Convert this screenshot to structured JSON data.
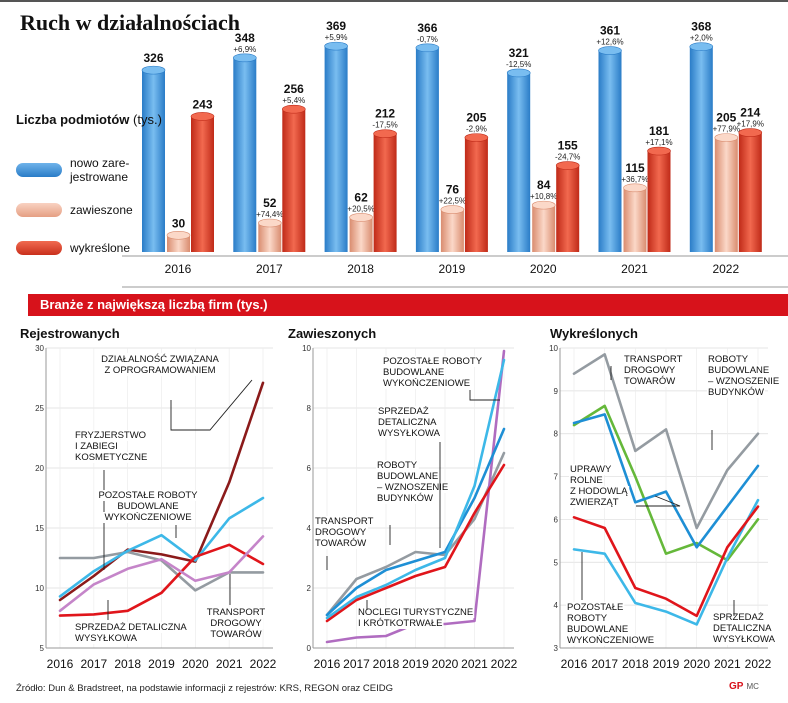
{
  "title": "Ruch w działalnościach",
  "legend": {
    "title_bold": "Liczba podmiotów",
    "title_unit": "(tys.)",
    "items": [
      {
        "label_line1": "nowo zare-",
        "label_line2": "jestrowane",
        "color": "#3a8fd6"
      },
      {
        "label_line1": "zawieszone",
        "label_line2": "",
        "color": "#f2b49c"
      },
      {
        "label_line1": "wykreślone",
        "label_line2": "",
        "color": "#e0402a"
      }
    ]
  },
  "chart_data": [
    {
      "type": "bar",
      "categories": [
        "2016",
        "2017",
        "2018",
        "2019",
        "2020",
        "2021",
        "2022"
      ],
      "ylim": [
        0,
        380
      ],
      "series": [
        {
          "name": "nowo zarejestrowane",
          "color": "#3a8fd6",
          "values": [
            326,
            348,
            369,
            366,
            321,
            361,
            368
          ],
          "changes": [
            "",
            "+6,9%",
            "+5,9%",
            "-0,7%",
            "-12,5%",
            "+12,6%",
            "+2,0%"
          ]
        },
        {
          "name": "zawieszone",
          "color": "#f2b49c",
          "values": [
            30,
            52,
            62,
            76,
            84,
            115,
            205
          ],
          "changes": [
            "",
            "+74,4%",
            "+20,5%",
            "+22,5%",
            "+10,8%",
            "+36,7%",
            "+77,9%"
          ]
        },
        {
          "name": "wykreślone",
          "color": "#e0402a",
          "values": [
            243,
            256,
            212,
            205,
            155,
            181,
            214
          ],
          "changes": [
            "",
            "+5,4%",
            "-17,5%",
            "-2,9%",
            "-24,7%",
            "+17,1%",
            "+17,9%"
          ]
        }
      ]
    },
    {
      "type": "line",
      "title": "Rejestrowanych",
      "x": [
        "2016",
        "2017",
        "2018",
        "2019",
        "2020",
        "2021",
        "2022"
      ],
      "ylim": [
        5,
        30
      ],
      "yticks": [
        5,
        10,
        15,
        20,
        25,
        30
      ],
      "series": [
        {
          "name": "DZIAŁALNOŚĆ ZWIĄZANA Z OPROGRAMOWANIEM",
          "color": "#8b1a1a",
          "values": [
            9.0,
            11.0,
            13.2,
            12.8,
            12.2,
            18.8,
            27.1
          ]
        },
        {
          "name": "FRYZJERSTWO I ZABIEGI KOSMETYCZNE",
          "color": "#949ba1",
          "values": [
            12.5,
            12.5,
            13.0,
            12.3,
            9.8,
            11.3,
            11.3
          ]
        },
        {
          "name": "POZOSTAŁE ROBOTY BUDOWLANE WYKOŃCZENIOWE",
          "color": "#3db8e8",
          "values": [
            9.3,
            11.4,
            13.1,
            14.4,
            12.3,
            15.8,
            17.5
          ]
        },
        {
          "name": "SPRZEDAŻ DETALICZNA WYSYŁKOWA",
          "color": "#e0151b",
          "values": [
            7.7,
            7.8,
            8.1,
            9.6,
            12.6,
            13.6,
            12.0
          ]
        },
        {
          "name": "TRANSPORT DROGOWY TOWARÓW",
          "color": "#c585c9",
          "values": [
            8.1,
            10.3,
            11.6,
            12.4,
            10.6,
            11.3,
            14.3
          ]
        }
      ],
      "labels": [
        {
          "line1": "DZIAŁALNOŚĆ ZWIĄZANA",
          "line2": "Z OPROGRAMOWANIEM",
          "line3": ""
        },
        {
          "line1": "FRYZJERSTWO",
          "line2": "I ZABIEGI",
          "line3": "KOSMETYCZNE"
        },
        {
          "line1": "POZOSTAŁE ROBOTY",
          "line2": "BUDOWLANE",
          "line3": "WYKOŃCZENIOWE"
        },
        {
          "line1": "SPRZEDAŻ DETALICZNA",
          "line2": "WYSYŁKOWA",
          "line3": ""
        },
        {
          "line1": "TRANSPORT",
          "line2": "DROGOWY",
          "line3": "TOWARÓW"
        }
      ]
    },
    {
      "type": "line",
      "title": "Zawieszonych",
      "x": [
        "2016",
        "2017",
        "2018",
        "2019",
        "2020",
        "2021",
        "2022"
      ],
      "ylim": [
        0,
        10
      ],
      "yticks": [
        0,
        2,
        4,
        6,
        8,
        10
      ],
      "series": [
        {
          "name": "TRANSPORT DROGOWY TOWARÓW",
          "color": "#949ba1",
          "values": [
            1.1,
            2.3,
            2.7,
            3.2,
            3.1,
            4.3,
            6.5
          ]
        },
        {
          "name": "NOCLEGI TURYSTYCZNE I KRÓTKOTRWAŁE",
          "color": "#b06cc0",
          "values": [
            0.2,
            0.35,
            0.4,
            0.8,
            0.8,
            0.9,
            9.9
          ]
        },
        {
          "name": "ROBOTY BUDOWLANE – WZNOSZENIE BUDYNKÓW",
          "color": "#1e8fd5",
          "values": [
            1.1,
            2.0,
            2.6,
            2.9,
            3.2,
            5.0,
            7.3
          ]
        },
        {
          "name": "SPRZEDAŻ DETALICZNA WYSYŁKOWA",
          "color": "#e0151b",
          "values": [
            0.9,
            1.6,
            2.0,
            2.4,
            2.7,
            4.5,
            6.1
          ]
        },
        {
          "name": "POZOSTAŁE ROBOTY BUDOWLANE WYKOŃCZENIOWE",
          "color": "#3db8e8",
          "values": [
            1.0,
            1.7,
            2.1,
            2.6,
            3.0,
            5.4,
            9.6
          ]
        }
      ],
      "labels": [
        {
          "line1": "TRANSPORT",
          "line2": "DROGOWY",
          "line3": "TOWARÓW"
        },
        {
          "line1": "NOCLEGI TURYSTYCZNE",
          "line2": "I KRÓTKOTRWAŁE",
          "line3": ""
        },
        {
          "line1": "ROBOTY",
          "line2": "BUDOWLANE",
          "line3": "– WZNOSZENIE",
          "line4": "BUDYNKÓW"
        },
        {
          "line1": "SPRZEDAŻ",
          "line2": "DETALICZNA",
          "line3": "WYSYŁKOWA"
        },
        {
          "line1": "POZOSTAŁE ROBOTY",
          "line2": "BUDOWLANE",
          "line3": "WYKOŃCZENIOWE"
        }
      ]
    },
    {
      "type": "line",
      "title": "Wykreślonych",
      "x": [
        "2016",
        "2017",
        "2018",
        "2019",
        "2020",
        "2021",
        "2022"
      ],
      "ylim": [
        3,
        10
      ],
      "yticks": [
        3,
        4,
        5,
        6,
        7,
        8,
        9,
        10
      ],
      "series": [
        {
          "name": "TRANSPORT DROGOWY TOWARÓW",
          "color": "#949ba1",
          "values": [
            9.4,
            9.85,
            7.6,
            8.1,
            5.8,
            7.15,
            8.0
          ]
        },
        {
          "name": "UPRAWY ROLNE Z HODOWLĄ ZWIERZĄT",
          "color": "#65b83a",
          "values": [
            8.2,
            8.65,
            7.0,
            5.2,
            5.45,
            5.05,
            6.0
          ]
        },
        {
          "name": "ROBOTY BUDOWLANE – WZNOSZENIE BUDYNKÓW",
          "color": "#1e8fd5",
          "values": [
            8.25,
            8.45,
            6.4,
            6.65,
            5.35,
            6.3,
            7.25
          ]
        },
        {
          "name": "POZOSTAŁE ROBOTY BUDOWLANE WYKOŃCZENIOWE",
          "color": "#3db8e8",
          "values": [
            5.3,
            5.2,
            4.05,
            3.85,
            3.55,
            5.1,
            6.45
          ]
        },
        {
          "name": "SPRZEDAŻ DETALICZNA WYSYŁKOWA",
          "color": "#e0151b",
          "values": [
            6.05,
            5.8,
            4.4,
            4.15,
            3.75,
            5.35,
            6.3
          ]
        }
      ],
      "labels": [
        {
          "line1": "TRANSPORT",
          "line2": "DROGOWY",
          "line3": "TOWARÓW"
        },
        {
          "line1": "UPRAWY",
          "line2": "ROLNE",
          "line3": "Z HODOWLĄ",
          "line4": "ZWIERZĄT"
        },
        {
          "line1": "ROBOTY",
          "line2": "BUDOWLANE",
          "line3": "– WZNOSZENIE",
          "line4": "BUDYNKÓW"
        },
        {
          "line1": "POZOSTAŁE",
          "line2": "ROBOTY",
          "line3": "BUDOWLANE",
          "line4": "WYKOŃCZENIOWE"
        },
        {
          "line1": "SPRZEDAŻ",
          "line2": "DETALICZNA",
          "line3": "WYSYŁKOWA"
        }
      ]
    }
  ],
  "banner": "Branże z największą liczbą firm (tys.)",
  "footer": "Źródło: Dun & Bradstreet, na podstawie informacji z rejestrów: KRS, REGON oraz CEIDG",
  "logo": "GP",
  "logo_author": "MC"
}
